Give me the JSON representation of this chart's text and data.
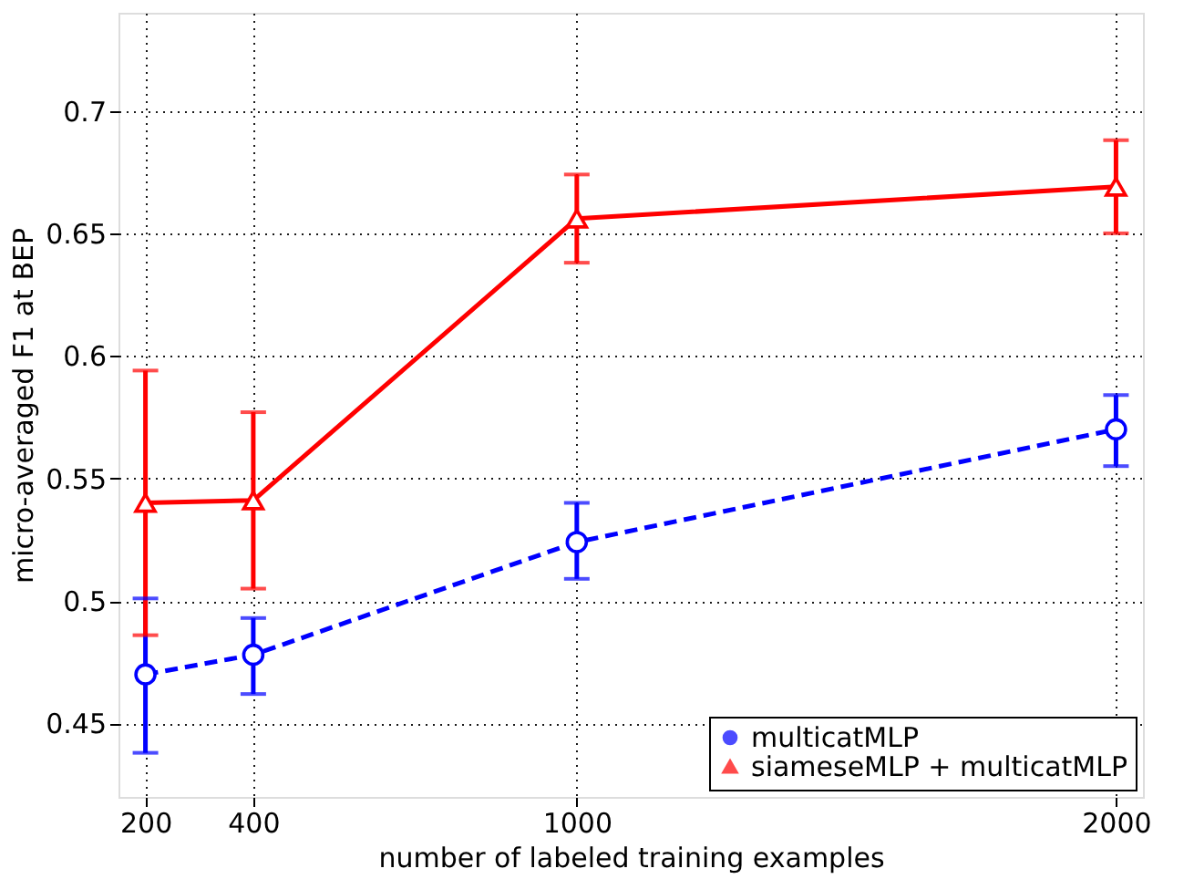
{
  "chart_data": {
    "type": "line",
    "xlabel": "number of labeled training examples",
    "ylabel": "micro-averaged F1 at BEP",
    "x": [
      200,
      400,
      1000,
      2000
    ],
    "series": [
      {
        "name": "multicatMLP",
        "color": "#0000ff",
        "marker": "circle",
        "line_style": "dashed",
        "values": [
          0.47,
          0.478,
          0.524,
          0.57
        ],
        "errors": [
          [
            0.438,
            0.501
          ],
          [
            0.462,
            0.493
          ],
          [
            0.509,
            0.54
          ],
          [
            0.555,
            0.584
          ]
        ]
      },
      {
        "name": "siameseMLP + multicatMLP",
        "color": "#ff0000",
        "marker": "triangle",
        "line_style": "solid",
        "values": [
          0.54,
          0.541,
          0.656,
          0.669
        ],
        "errors": [
          [
            0.486,
            0.594
          ],
          [
            0.505,
            0.577
          ],
          [
            0.638,
            0.674
          ],
          [
            0.65,
            0.688
          ]
        ]
      }
    ],
    "xlim": [
      150,
      2050
    ],
    "xticks": [
      200,
      400,
      1000,
      2000
    ],
    "ylim": [
      0.42,
      0.74
    ],
    "yticks": [
      0.45,
      0.5,
      0.55,
      0.6,
      0.65,
      0.7
    ],
    "grid": true,
    "legend": "bottom right"
  }
}
